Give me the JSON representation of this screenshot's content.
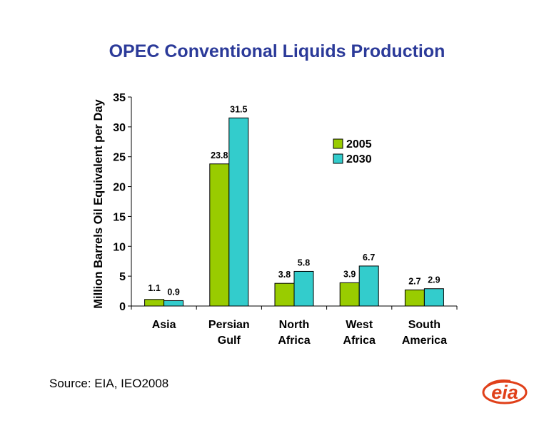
{
  "chart_data": {
    "type": "bar",
    "title": "OPEC Conventional Liquids Production",
    "ylabel": "Million Barrels Oil Equivalent per Day",
    "xlabel": "",
    "ylim": [
      0,
      35
    ],
    "yticks": [
      0,
      5,
      10,
      15,
      20,
      25,
      30,
      35
    ],
    "categories": [
      [
        "Asia"
      ],
      [
        "Persian",
        "Gulf"
      ],
      [
        "North",
        "Africa"
      ],
      [
        "West",
        "Africa"
      ],
      [
        "South",
        "America"
      ]
    ],
    "series": [
      {
        "name": "2005",
        "values": [
          1.1,
          23.8,
          3.8,
          3.9,
          2.7
        ],
        "labels": [
          "1.1",
          "23.8",
          "3.8",
          "3.9",
          "2.7"
        ],
        "color": "#99cc00"
      },
      {
        "name": "2030",
        "values": [
          0.9,
          31.5,
          5.8,
          6.7,
          2.9
        ],
        "labels": [
          "0.9",
          "31.5",
          "5.8",
          "6.7",
          "2.9"
        ],
        "color": "#33cccc"
      }
    ],
    "legend": "upper-right",
    "grid": false
  },
  "source": "Source:  EIA, IEO2008",
  "logo": {
    "text": "eia",
    "color": "#e0401a"
  }
}
